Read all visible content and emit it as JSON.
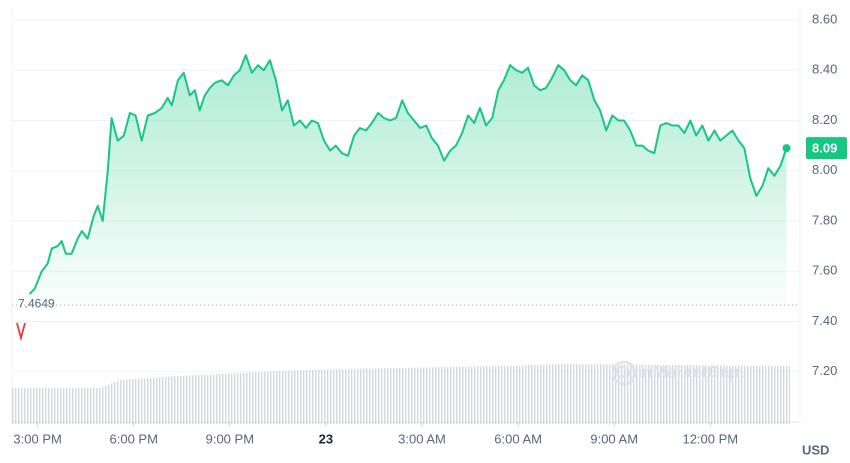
{
  "chart_data": {
    "type": "line",
    "color": "#16c784",
    "currency": "USD",
    "watermark": "CoinMarketCap",
    "reference_line": 7.4649,
    "grid": true,
    "xlim": [
      14.2,
      38.8
    ],
    "xticks": [
      {
        "value": 15,
        "label": "3:00 PM"
      },
      {
        "value": 18,
        "label": "6:00 PM"
      },
      {
        "value": 21,
        "label": "9:00 PM"
      },
      {
        "value": 24,
        "label": "23"
      },
      {
        "value": 27,
        "label": "3:00 AM"
      },
      {
        "value": 30,
        "label": "6:00 AM"
      },
      {
        "value": 33,
        "label": "9:00 AM"
      },
      {
        "value": 36,
        "label": "12:00 PM"
      }
    ],
    "ylim": [
      7.0,
      8.6
    ],
    "yticks": [
      {
        "value": 7.2,
        "label": "7.20"
      },
      {
        "value": 7.4,
        "label": "7.40"
      },
      {
        "value": 7.6,
        "label": "7.60"
      },
      {
        "value": 7.8,
        "label": "7.80"
      },
      {
        "value": 8.0,
        "label": "8.00"
      },
      {
        "value": 8.2,
        "label": "8.20"
      },
      {
        "value": 8.4,
        "label": "8.40"
      },
      {
        "value": 8.6,
        "label": "8.60"
      }
    ],
    "x": [
      14.75,
      14.91,
      15.13,
      15.31,
      15.44,
      15.63,
      15.75,
      15.88,
      16.06,
      16.25,
      16.38,
      16.56,
      16.75,
      16.88,
      17.03,
      17.19,
      17.31,
      17.5,
      17.69,
      17.88,
      18.06,
      18.25,
      18.44,
      18.66,
      18.88,
      19.06,
      19.19,
      19.38,
      19.56,
      19.75,
      19.91,
      20.06,
      20.22,
      20.38,
      20.53,
      20.75,
      20.94,
      21.13,
      21.31,
      21.5,
      21.69,
      21.88,
      22.06,
      22.25,
      22.44,
      22.63,
      22.81,
      23,
      23.19,
      23.38,
      23.56,
      23.75,
      23.94,
      24.13,
      24.31,
      24.5,
      24.69,
      24.88,
      25.06,
      25.25,
      25.44,
      25.63,
      25.81,
      26,
      26.19,
      26.38,
      26.56,
      26.75,
      26.94,
      27.13,
      27.31,
      27.5,
      27.69,
      27.88,
      28.06,
      28.25,
      28.44,
      28.63,
      28.81,
      29,
      29.19,
      29.38,
      29.56,
      29.75,
      29.94,
      30.13,
      30.31,
      30.5,
      30.69,
      30.88,
      31.06,
      31.25,
      31.44,
      31.63,
      31.81,
      32,
      32.19,
      32.38,
      32.56,
      32.75,
      32.94,
      33.13,
      33.31,
      33.5,
      33.69,
      33.88,
      34.06,
      34.25,
      34.44,
      34.63,
      34.81,
      35,
      35.19,
      35.38,
      35.56,
      35.75,
      35.94,
      36.13,
      36.31,
      36.5,
      36.69,
      36.88,
      37.06,
      37.25,
      37.44,
      37.63,
      37.81,
      38,
      38.19,
      38.38
    ],
    "values": [
      7.51,
      7.53,
      7.6,
      7.63,
      7.69,
      7.7,
      7.72,
      7.67,
      7.67,
      7.73,
      7.76,
      7.73,
      7.82,
      7.86,
      7.8,
      8.0,
      8.21,
      8.12,
      8.14,
      8.23,
      8.22,
      8.12,
      8.22,
      8.23,
      8.25,
      8.29,
      8.26,
      8.36,
      8.39,
      8.3,
      8.32,
      8.24,
      8.3,
      8.33,
      8.35,
      8.36,
      8.34,
      8.38,
      8.4,
      8.46,
      8.39,
      8.42,
      8.4,
      8.44,
      8.36,
      8.24,
      8.28,
      8.18,
      8.2,
      8.17,
      8.2,
      8.19,
      8.12,
      8.08,
      8.1,
      8.07,
      8.06,
      8.14,
      8.17,
      8.16,
      8.19,
      8.23,
      8.21,
      8.2,
      8.21,
      8.28,
      8.23,
      8.2,
      8.17,
      8.18,
      8.13,
      8.1,
      8.04,
      8.08,
      8.1,
      8.15,
      8.22,
      8.19,
      8.25,
      8.18,
      8.21,
      8.32,
      8.36,
      8.42,
      8.4,
      8.39,
      8.41,
      8.34,
      8.32,
      8.33,
      8.37,
      8.42,
      8.4,
      8.36,
      8.34,
      8.38,
      8.36,
      8.28,
      8.24,
      8.16,
      8.22,
      8.2,
      8.2,
      8.16,
      8.1,
      8.1,
      8.08,
      8.07,
      8.18,
      8.19,
      8.18,
      8.18,
      8.15,
      8.2,
      8.14,
      8.18,
      8.12,
      8.16,
      8.12,
      8.14,
      8.16,
      8.12,
      8.09,
      7.97,
      7.9,
      7.94,
      8.01,
      7.98,
      8.02,
      8.09
    ]
  }
}
